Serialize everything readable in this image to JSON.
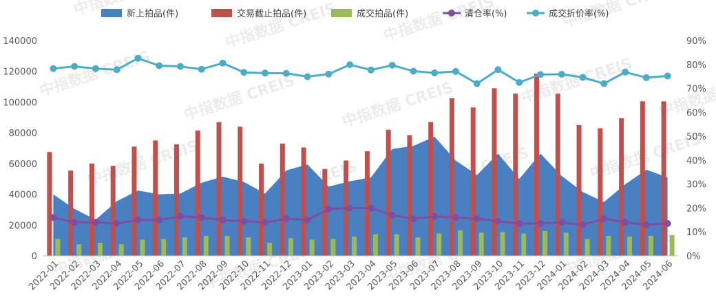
{
  "chart_data": {
    "type": "bar",
    "categories": [
      "2022-01",
      "2022-02",
      "2022-03",
      "2022-04",
      "2022-05",
      "2022-06",
      "2022-07",
      "2022-08",
      "2022-09",
      "2022-10",
      "2022-11",
      "2022-12",
      "2023-01",
      "2023-02",
      "2023-03",
      "2023-04",
      "2023-05",
      "2023-06",
      "2023-07",
      "2023-08",
      "2023-09",
      "2023-10",
      "2023-11",
      "2023-12",
      "2024-01",
      "2024-02",
      "2024-03",
      "2024-04",
      "2024-05",
      "2024-06"
    ],
    "y_left": {
      "ylim": [
        0,
        140000
      ],
      "ticks": [
        "0",
        "20000",
        "40000",
        "60000",
        "80000",
        "100000",
        "120000",
        "140000"
      ]
    },
    "y_right": {
      "ylim": [
        0,
        0.9
      ],
      "ticks": [
        "0%",
        "10%",
        "20%",
        "30%",
        "40%",
        "50%",
        "60%",
        "70%",
        "80%",
        "90%"
      ]
    },
    "legend_position": "top",
    "grid": false,
    "series": [
      {
        "name": "新上拍品(件)",
        "kind": "area",
        "axis": "left",
        "color": "#4a7fc1",
        "values": [
          40000,
          30500,
          23500,
          35500,
          42500,
          40000,
          40500,
          47500,
          51500,
          48000,
          40500,
          55500,
          59500,
          45000,
          48500,
          51000,
          69500,
          71500,
          77500,
          62000,
          52500,
          66500,
          50000,
          66500,
          52000,
          41500,
          35000,
          46500,
          56000,
          51000
        ]
      },
      {
        "name": "交易截止拍品(件)",
        "kind": "bar",
        "axis": "left",
        "color": "#c0504d",
        "values": [
          67500,
          55500,
          60000,
          58500,
          71000,
          75000,
          72500,
          81500,
          87000,
          84000,
          60000,
          73000,
          70500,
          56500,
          62000,
          68000,
          82000,
          78500,
          87000,
          102500,
          96500,
          109000,
          105500,
          118500,
          105500,
          85000,
          83000,
          89500,
          100500,
          100500
        ]
      },
      {
        "name": "成交拍品(件)",
        "kind": "bar",
        "axis": "left",
        "color": "#9bbb59",
        "values": [
          11000,
          7500,
          8500,
          7500,
          10500,
          11000,
          12000,
          13000,
          13000,
          12000,
          8500,
          11500,
          10500,
          11000,
          12500,
          14000,
          14000,
          12000,
          14500,
          16500,
          15000,
          15500,
          14500,
          16000,
          15000,
          11000,
          13000,
          12500,
          13000,
          13500
        ]
      },
      {
        "name": "清仓率(%)",
        "kind": "line",
        "axis": "right",
        "color": "#7e4fa1",
        "values": [
          0.16,
          0.14,
          0.14,
          0.135,
          0.15,
          0.15,
          0.165,
          0.16,
          0.15,
          0.145,
          0.14,
          0.155,
          0.15,
          0.195,
          0.2,
          0.2,
          0.17,
          0.155,
          0.165,
          0.16,
          0.155,
          0.145,
          0.135,
          0.135,
          0.14,
          0.13,
          0.155,
          0.14,
          0.13,
          0.135
        ]
      },
      {
        "name": "成交折价率(%)",
        "kind": "line",
        "axis": "right",
        "color": "#4bacc6",
        "values": [
          0.783,
          0.792,
          0.783,
          0.778,
          0.826,
          0.795,
          0.792,
          0.78,
          0.806,
          0.767,
          0.764,
          0.763,
          0.749,
          0.76,
          0.799,
          0.777,
          0.797,
          0.772,
          0.765,
          0.771,
          0.72,
          0.778,
          0.725,
          0.758,
          0.759,
          0.746,
          0.72,
          0.768,
          0.745,
          0.752
        ]
      }
    ],
    "watermark": "中指数据 CREIS"
  }
}
